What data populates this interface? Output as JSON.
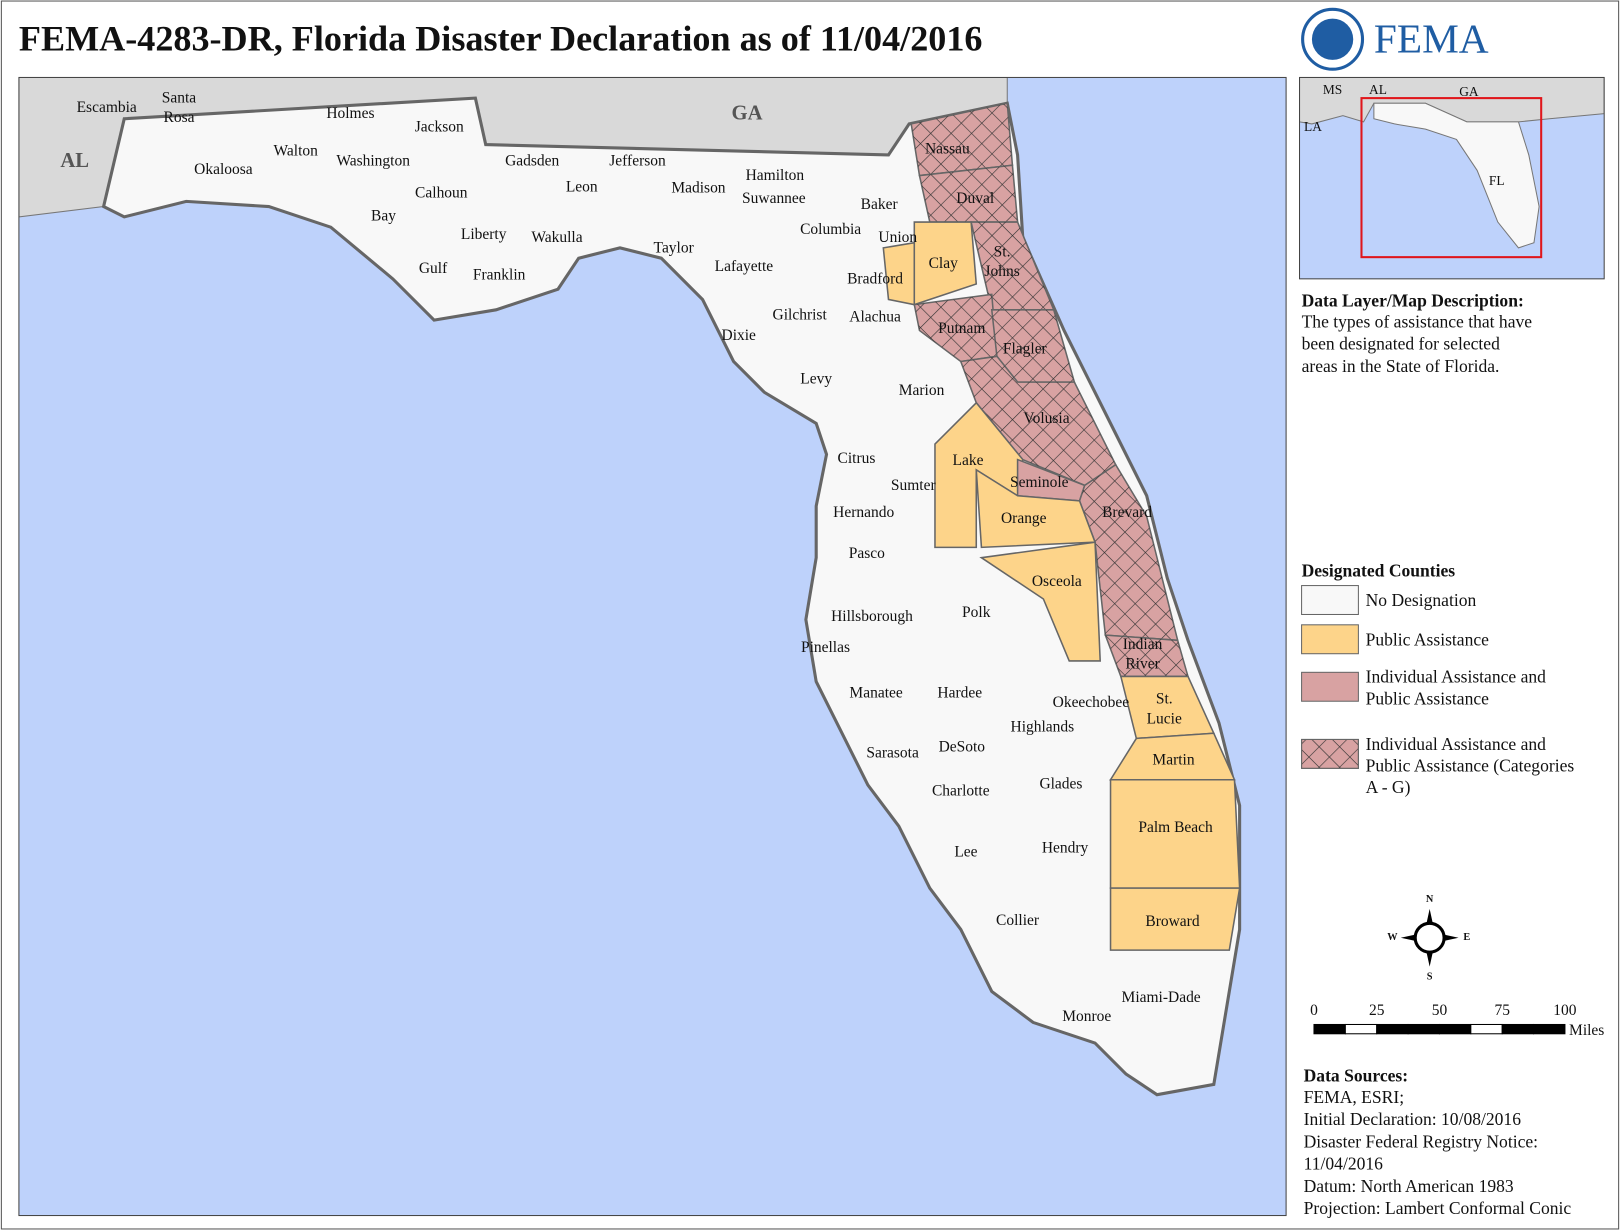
{
  "header": {
    "title": "FEMA-4283-DR, Florida Disaster Declaration as of 11/04/2016",
    "logo_text": "FEMA"
  },
  "map": {
    "state_labels": [
      "AL",
      "GA"
    ],
    "counties": [
      {
        "name": "Escambia",
        "designation": 0
      },
      {
        "name": [
          "Santa",
          "Rosa"
        ],
        "designation": 0
      },
      {
        "name": "Okaloosa",
        "designation": 0
      },
      {
        "name": "Walton",
        "designation": 0
      },
      {
        "name": "Holmes",
        "designation": 0
      },
      {
        "name": "Washington",
        "designation": 0
      },
      {
        "name": "Jackson",
        "designation": 0
      },
      {
        "name": "Bay",
        "designation": 0
      },
      {
        "name": "Calhoun",
        "designation": 0
      },
      {
        "name": "Gulf",
        "designation": 0
      },
      {
        "name": "Liberty",
        "designation": 0
      },
      {
        "name": "Franklin",
        "designation": 0
      },
      {
        "name": "Gadsden",
        "designation": 0
      },
      {
        "name": "Leon",
        "designation": 0
      },
      {
        "name": "Wakulla",
        "designation": 0
      },
      {
        "name": "Jefferson",
        "designation": 0
      },
      {
        "name": "Madison",
        "designation": 0
      },
      {
        "name": "Taylor",
        "designation": 0
      },
      {
        "name": "Hamilton",
        "designation": 0
      },
      {
        "name": "Suwannee",
        "designation": 0
      },
      {
        "name": "Lafayette",
        "designation": 0
      },
      {
        "name": "Columbia",
        "designation": 0
      },
      {
        "name": "Baker",
        "designation": 0
      },
      {
        "name": "Union",
        "designation": 0
      },
      {
        "name": "Bradford",
        "designation": 1
      },
      {
        "name": "Nassau",
        "designation": 3
      },
      {
        "name": "Duval",
        "designation": 3
      },
      {
        "name": "Clay",
        "designation": 1
      },
      {
        "name": [
          "St.",
          "Johns"
        ],
        "designation": 3
      },
      {
        "name": "Putnam",
        "designation": 3
      },
      {
        "name": "Flagler",
        "designation": 3
      },
      {
        "name": "Gilchrist",
        "designation": 0
      },
      {
        "name": "Alachua",
        "designation": 0
      },
      {
        "name": "Dixie",
        "designation": 0
      },
      {
        "name": "Levy",
        "designation": 0
      },
      {
        "name": "Marion",
        "designation": 0
      },
      {
        "name": "Volusia",
        "designation": 3
      },
      {
        "name": "Citrus",
        "designation": 0
      },
      {
        "name": "Lake",
        "designation": 1
      },
      {
        "name": "Seminole",
        "designation": 2
      },
      {
        "name": "Sumter",
        "designation": 0
      },
      {
        "name": "Hernando",
        "designation": 0
      },
      {
        "name": "Brevard",
        "designation": 3
      },
      {
        "name": "Orange",
        "designation": 1
      },
      {
        "name": "Pasco",
        "designation": 0
      },
      {
        "name": "Osceola",
        "designation": 1
      },
      {
        "name": "Polk",
        "designation": 0
      },
      {
        "name": "Hillsborough",
        "designation": 0
      },
      {
        "name": "Pinellas",
        "designation": 0
      },
      {
        "name": [
          "Indian",
          "River"
        ],
        "designation": 3
      },
      {
        "name": "Manatee",
        "designation": 0
      },
      {
        "name": "Hardee",
        "designation": 0
      },
      {
        "name": "Okeechobee",
        "designation": 0
      },
      {
        "name": [
          "St.",
          "Lucie"
        ],
        "designation": 1
      },
      {
        "name": "Highlands",
        "designation": 0
      },
      {
        "name": "DeSoto",
        "designation": 0
      },
      {
        "name": "Sarasota",
        "designation": 0
      },
      {
        "name": "Martin",
        "designation": 1
      },
      {
        "name": "Charlotte",
        "designation": 0
      },
      {
        "name": "Glades",
        "designation": 0
      },
      {
        "name": "Palm Beach",
        "designation": 1
      },
      {
        "name": "Lee",
        "designation": 0
      },
      {
        "name": "Hendry",
        "designation": 0
      },
      {
        "name": "Collier",
        "designation": 0
      },
      {
        "name": "Broward",
        "designation": 1
      },
      {
        "name": "Miami-Dade",
        "designation": 0
      },
      {
        "name": "Monroe",
        "designation": 0
      }
    ]
  },
  "inset": {
    "labels": [
      "MS",
      "AL",
      "GA",
      "LA",
      "FL"
    ]
  },
  "description": {
    "heading": "Data Layer/Map Description:",
    "lines": [
      "The types of assistance that have",
      "been designated for selected",
      "areas in the State of Florida."
    ]
  },
  "legend": {
    "title": "Designated Counties",
    "items": [
      {
        "label": [
          "No Designation"
        ],
        "color": "#f8f8f8"
      },
      {
        "label": [
          "Public Assistance"
        ],
        "color": "#fdd48a"
      },
      {
        "label": [
          "Individual Assistance and",
          "Public Assistance"
        ],
        "color": "#d8a2a2"
      },
      {
        "label": [
          "Individual Assistance and",
          "Public Assistance (Categories",
          "A - G)"
        ],
        "color": "#d8a2a2",
        "pattern": "crosshatch"
      }
    ]
  },
  "compass": {
    "n": "N",
    "e": "E",
    "s": "S",
    "w": "W"
  },
  "scale_bar": {
    "ticks": [
      0,
      25,
      50,
      75,
      100
    ],
    "unit": "Miles"
  },
  "sources": {
    "heading": "Data Sources:",
    "lines": [
      "FEMA, ESRI;",
      "Initial Declaration: 10/08/2016",
      "Disaster Federal Registry Notice:",
      "11/04/2016",
      "Datum: North American 1983",
      "Projection: Lambert Conformal Conic"
    ]
  }
}
